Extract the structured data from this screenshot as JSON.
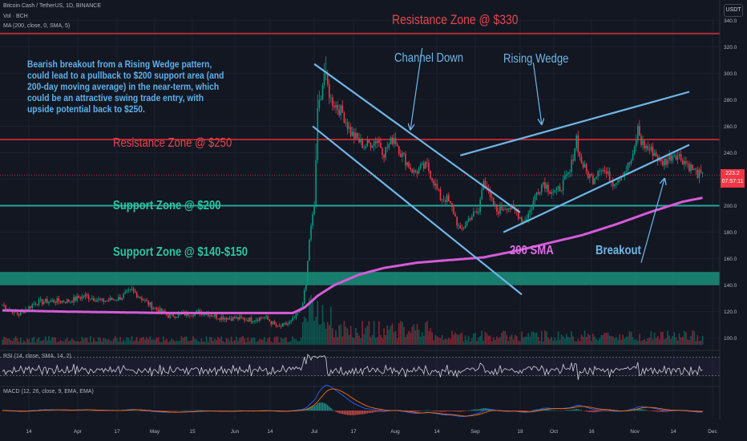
{
  "header": {
    "symbol_line": "Bitcoin Cash / TetherUS, 1D, BINANCE",
    "vol_line": "Vol · BCH",
    "ma_line": "MA (200, close, 0, SMA, 5)",
    "rsi_line": "RSI (14, close, SMA, 14, 2)",
    "macd_line": "MACD (12, 26, close, 9, EMA, EMA)"
  },
  "currency_button": "USDT",
  "price_tag": {
    "value": "223.2",
    "countdown": "07:57:11"
  },
  "colors": {
    "background": "#131722",
    "up": "#089981",
    "down": "#f23645",
    "resistance_line": "#b22833",
    "support_line": "#26a69a",
    "support_band": "#1b8f7a",
    "sma": "#d65bd8",
    "trendline": "#6fb7e7",
    "annotation_red": "#e3474f",
    "annotation_teal": "#2ec4a0",
    "annotation_blue": "#6fb7e7",
    "annotation_pink": "#e36be8"
  },
  "annotations": {
    "note": "Bearish breakout from a Rising Wedge pattern, could lead to a pullback to $200 support area (and 200-day moving average) in the near-term, which could be an attractive swing trade entry, with upside potential back to $250.",
    "resistance_330": "Resistance Zone @ $330",
    "resistance_250": "Resistance Zone @ $250",
    "support_200": "Support Zone @ $200",
    "support_140": "Support Zone @ $140-$150",
    "channel_down": "Channel Down",
    "rising_wedge": "Rising Wedge",
    "sma_label": "200 SMA",
    "breakout": "Breakout"
  },
  "chart_data": {
    "type": "candlestick",
    "symbol": "BCHUSDT",
    "timeframe": "1D",
    "exchange": "BINANCE",
    "y_ticks": [
      340,
      320,
      300,
      280,
      260,
      240,
      220,
      200,
      180,
      160,
      140,
      120,
      100
    ],
    "ylim": [
      95,
      342
    ],
    "x_ticks": [
      "14",
      "Apr",
      "17",
      "May",
      "15",
      "Jun",
      "14",
      "Jul",
      "17",
      "Aug",
      "14",
      "Sep",
      "18",
      "Oct",
      "16",
      "Nov",
      "14",
      "Dec"
    ],
    "zones": {
      "resistance_top": 330,
      "resistance_mid": 250,
      "support_mid": 200,
      "support_low": [
        140,
        150
      ]
    },
    "last_price": 223.2,
    "price_anchors": [
      [
        0,
        125
      ],
      [
        10,
        118
      ],
      [
        20,
        127
      ],
      [
        30,
        128
      ],
      [
        40,
        128
      ],
      [
        50,
        132
      ],
      [
        60,
        128
      ],
      [
        70,
        130
      ],
      [
        78,
        136
      ],
      [
        90,
        124
      ],
      [
        100,
        117
      ],
      [
        110,
        118
      ],
      [
        120,
        120
      ],
      [
        130,
        116
      ],
      [
        150,
        114
      ],
      [
        158,
        116
      ],
      [
        166,
        108
      ],
      [
        174,
        112
      ],
      [
        180,
        122
      ],
      [
        183,
        140
      ],
      [
        185,
        175
      ],
      [
        188,
        200
      ],
      [
        190,
        270
      ],
      [
        194,
        300
      ],
      [
        198,
        280
      ],
      [
        205,
        270
      ],
      [
        210,
        255
      ],
      [
        218,
        245
      ],
      [
        226,
        250
      ],
      [
        230,
        240
      ],
      [
        236,
        252
      ],
      [
        240,
        240
      ],
      [
        248,
        225
      ],
      [
        252,
        228
      ],
      [
        256,
        230
      ],
      [
        260,
        218
      ],
      [
        264,
        206
      ],
      [
        268,
        205
      ],
      [
        272,
        195
      ],
      [
        276,
        180
      ],
      [
        282,
        192
      ],
      [
        287,
        195
      ],
      [
        290,
        222
      ],
      [
        294,
        205
      ],
      [
        298,
        196
      ],
      [
        304,
        200
      ],
      [
        310,
        195
      ],
      [
        314,
        188
      ],
      [
        318,
        196
      ],
      [
        322,
        210
      ],
      [
        326,
        218
      ],
      [
        330,
        212
      ],
      [
        334,
        210
      ],
      [
        338,
        217
      ],
      [
        342,
        225
      ],
      [
        344,
        238
      ],
      [
        346,
        252
      ],
      [
        348,
        236
      ],
      [
        352,
        225
      ],
      [
        356,
        220
      ],
      [
        360,
        230
      ],
      [
        364,
        224
      ],
      [
        368,
        218
      ],
      [
        372,
        222
      ],
      [
        376,
        228
      ],
      [
        380,
        236
      ],
      [
        383,
        258
      ],
      [
        385,
        248
      ],
      [
        389,
        243
      ],
      [
        393,
        240
      ],
      [
        397,
        232
      ],
      [
        401,
        235
      ],
      [
        405,
        240
      ],
      [
        410,
        235
      ],
      [
        414,
        230
      ],
      [
        418,
        225
      ],
      [
        422,
        222
      ]
    ],
    "sma200_anchors": [
      [
        0,
        121
      ],
      [
        40,
        120
      ],
      [
        100,
        119
      ],
      [
        130,
        119
      ],
      [
        175,
        119
      ],
      [
        182,
        123
      ],
      [
        190,
        132
      ],
      [
        200,
        140
      ],
      [
        215,
        148
      ],
      [
        230,
        153
      ],
      [
        250,
        157
      ],
      [
        270,
        159
      ],
      [
        290,
        161
      ],
      [
        310,
        166
      ],
      [
        330,
        172
      ],
      [
        350,
        178
      ],
      [
        370,
        186
      ],
      [
        390,
        195
      ],
      [
        410,
        203
      ],
      [
        422,
        206
      ]
    ],
    "rsi": {
      "levels": [
        80,
        40
      ],
      "ylim": [
        20,
        95
      ]
    },
    "macd": {
      "levels": [
        40,
        0
      ],
      "ylim": [
        -15,
        45
      ]
    }
  }
}
